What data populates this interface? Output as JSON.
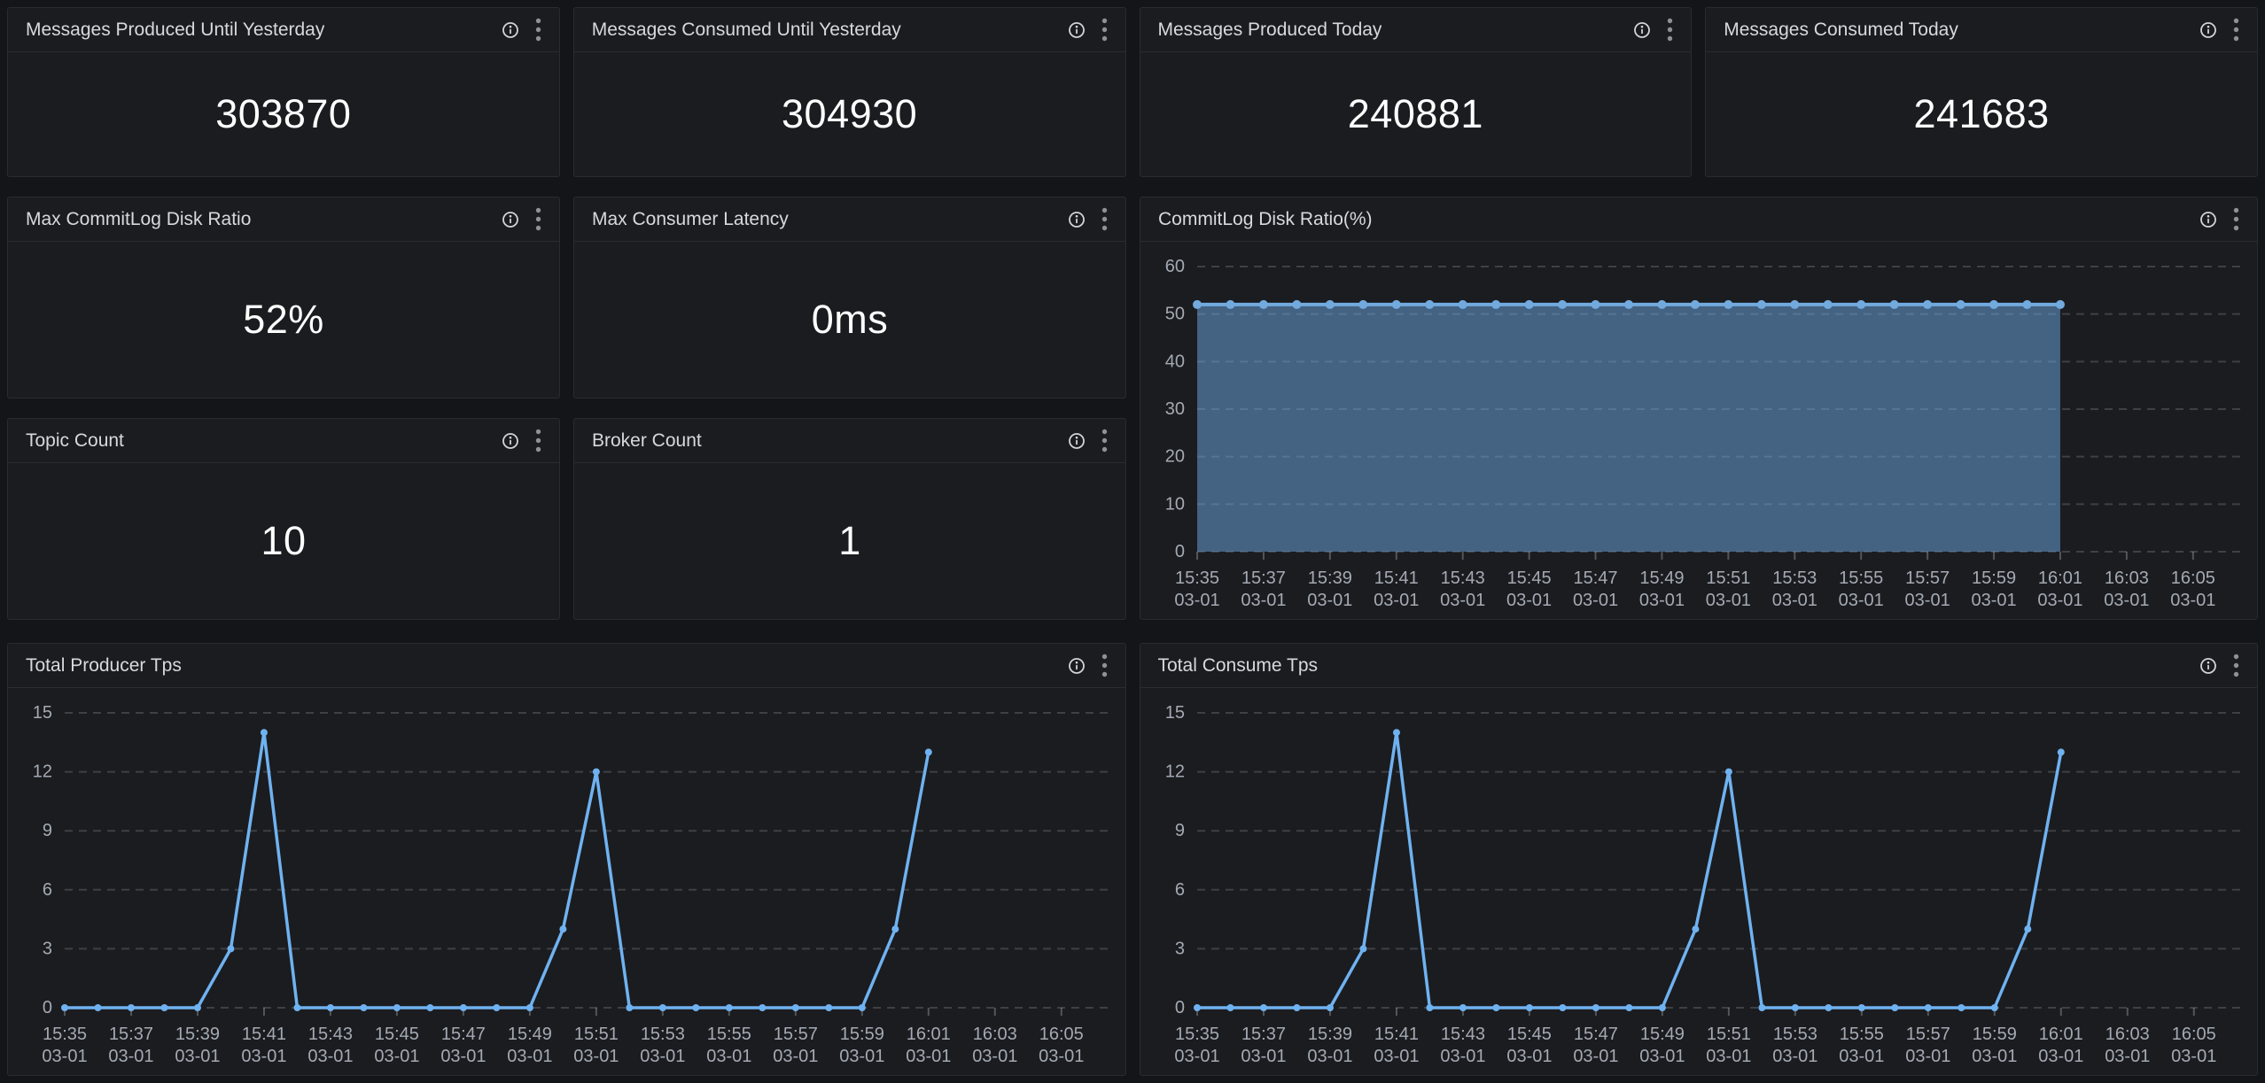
{
  "colors": {
    "page_bg": "#141518",
    "panel_bg": "#1b1c1f",
    "panel_border": "#2a2b2f",
    "title_text": "#d8d9da",
    "value_text": "#ffffff",
    "axis_text": "#a3aab4",
    "gridline": "rgba(255,255,255,0.16)",
    "tick_mark": "rgba(255,255,255,0.25)",
    "info_icon": "#d2d4d6",
    "kebab_icon": "#8e9196"
  },
  "icons": {
    "info_tooltip": "ⓘ",
    "panel_menu": "⋮"
  },
  "stats": [
    {
      "title": "Messages Produced Until Yesterday",
      "value": "303870"
    },
    {
      "title": "Messages Consumed Until Yesterday",
      "value": "304930"
    },
    {
      "title": "Messages Produced Today",
      "value": "240881"
    },
    {
      "title": "Messages Consumed Today",
      "value": "241683"
    },
    {
      "title": "Max CommitLog Disk Ratio",
      "value": "52%"
    },
    {
      "title": "Max Consumer Latency",
      "value": "0ms"
    },
    {
      "title": "Topic Count",
      "value": "10"
    },
    {
      "title": "Broker Count",
      "value": "1"
    }
  ],
  "chart_data": [
    {
      "type": "area",
      "title": "CommitLog Disk Ratio(%)",
      "xlabel": "",
      "ylabel": "",
      "ylim": [
        0,
        60
      ],
      "yticks": [
        0,
        10,
        20,
        30,
        40,
        50,
        60
      ],
      "grid": true,
      "legend": "none",
      "x_domain_minutes": [
        0,
        31.5
      ],
      "x_tick_step_min": 2,
      "point_interval_min": 1,
      "points_start": "15:35",
      "x_tick_labels": [
        {
          "time": "15:35",
          "date": "03-01"
        },
        {
          "time": "15:37",
          "date": "03-01"
        },
        {
          "time": "15:39",
          "date": "03-01"
        },
        {
          "time": "15:41",
          "date": "03-01"
        },
        {
          "time": "15:43",
          "date": "03-01"
        },
        {
          "time": "15:45",
          "date": "03-01"
        },
        {
          "time": "15:47",
          "date": "03-01"
        },
        {
          "time": "15:49",
          "date": "03-01"
        },
        {
          "time": "15:51",
          "date": "03-01"
        },
        {
          "time": "15:53",
          "date": "03-01"
        },
        {
          "time": "15:55",
          "date": "03-01"
        },
        {
          "time": "15:57",
          "date": "03-01"
        },
        {
          "time": "15:59",
          "date": "03-01"
        },
        {
          "time": "16:01",
          "date": "03-01"
        },
        {
          "time": "16:03",
          "date": "03-01"
        },
        {
          "time": "16:05",
          "date": "03-01"
        }
      ],
      "series": [
        {
          "name": "CommitLog Disk Ratio",
          "values": [
            52,
            52,
            52,
            52,
            52,
            52,
            52,
            52,
            52,
            52,
            52,
            52,
            52,
            52,
            52,
            52,
            52,
            52,
            52,
            52,
            52,
            52,
            52,
            52,
            52,
            52,
            52
          ]
        }
      ],
      "line_color": "#72aade",
      "fill_color": "rgba(110,168,230,0.5)",
      "line_width": 4,
      "marker_radius": 5
    },
    {
      "type": "line",
      "title": "Total Producer Tps",
      "xlabel": "",
      "ylabel": "",
      "ylim": [
        0,
        15
      ],
      "yticks": [
        0,
        3,
        6,
        9,
        12,
        15
      ],
      "grid": true,
      "legend": "none",
      "x_domain_minutes": [
        0,
        31.5
      ],
      "x_tick_step_min": 2,
      "point_interval_min": 1,
      "points_start": "15:35",
      "x_tick_labels": [
        {
          "time": "15:35",
          "date": "03-01"
        },
        {
          "time": "15:37",
          "date": "03-01"
        },
        {
          "time": "15:39",
          "date": "03-01"
        },
        {
          "time": "15:41",
          "date": "03-01"
        },
        {
          "time": "15:43",
          "date": "03-01"
        },
        {
          "time": "15:45",
          "date": "03-01"
        },
        {
          "time": "15:47",
          "date": "03-01"
        },
        {
          "time": "15:49",
          "date": "03-01"
        },
        {
          "time": "15:51",
          "date": "03-01"
        },
        {
          "time": "15:53",
          "date": "03-01"
        },
        {
          "time": "15:55",
          "date": "03-01"
        },
        {
          "time": "15:57",
          "date": "03-01"
        },
        {
          "time": "15:59",
          "date": "03-01"
        },
        {
          "time": "16:01",
          "date": "03-01"
        },
        {
          "time": "16:03",
          "date": "03-01"
        },
        {
          "time": "16:05",
          "date": "03-01"
        }
      ],
      "series": [
        {
          "name": "Total Producer Tps",
          "values": [
            0,
            0,
            0,
            0,
            0,
            3,
            14,
            0,
            0,
            0,
            0,
            0,
            0,
            0,
            0,
            4,
            12,
            0,
            0,
            0,
            0,
            0,
            0,
            0,
            0,
            4,
            13
          ]
        }
      ],
      "line_color": "#6fb2f1",
      "fill_color": null,
      "line_width": 3.5,
      "marker_radius": 4
    },
    {
      "type": "line",
      "title": "Total Consume Tps",
      "xlabel": "",
      "ylabel": "",
      "ylim": [
        0,
        15
      ],
      "yticks": [
        0,
        3,
        6,
        9,
        12,
        15
      ],
      "grid": true,
      "legend": "none",
      "x_domain_minutes": [
        0,
        31.5
      ],
      "x_tick_step_min": 2,
      "point_interval_min": 1,
      "points_start": "15:35",
      "x_tick_labels": [
        {
          "time": "15:35",
          "date": "03-01"
        },
        {
          "time": "15:37",
          "date": "03-01"
        },
        {
          "time": "15:39",
          "date": "03-01"
        },
        {
          "time": "15:41",
          "date": "03-01"
        },
        {
          "time": "15:43",
          "date": "03-01"
        },
        {
          "time": "15:45",
          "date": "03-01"
        },
        {
          "time": "15:47",
          "date": "03-01"
        },
        {
          "time": "15:49",
          "date": "03-01"
        },
        {
          "time": "15:51",
          "date": "03-01"
        },
        {
          "time": "15:53",
          "date": "03-01"
        },
        {
          "time": "15:55",
          "date": "03-01"
        },
        {
          "time": "15:57",
          "date": "03-01"
        },
        {
          "time": "15:59",
          "date": "03-01"
        },
        {
          "time": "16:01",
          "date": "03-01"
        },
        {
          "time": "16:03",
          "date": "03-01"
        },
        {
          "time": "16:05",
          "date": "03-01"
        }
      ],
      "series": [
        {
          "name": "Total Consume Tps",
          "values": [
            0,
            0,
            0,
            0,
            0,
            3,
            14,
            0,
            0,
            0,
            0,
            0,
            0,
            0,
            0,
            4,
            12,
            0,
            0,
            0,
            0,
            0,
            0,
            0,
            0,
            4,
            13
          ]
        }
      ],
      "line_color": "#6fb2f1",
      "fill_color": null,
      "line_width": 3.5,
      "marker_radius": 4
    }
  ]
}
